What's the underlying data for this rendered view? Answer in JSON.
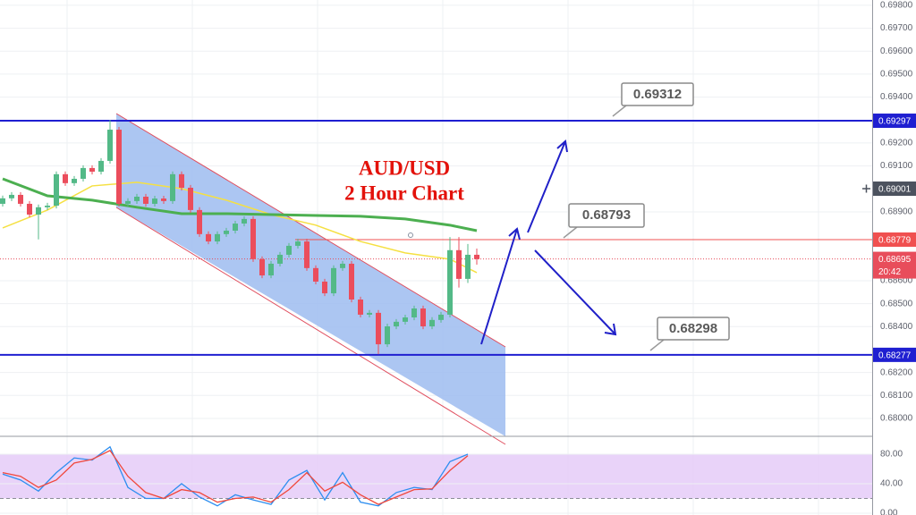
{
  "chart_data": [
    {
      "type": "candlestick",
      "title": "AUD/USD",
      "subtitle": "2 Hour Chart",
      "up_color": "#53b987",
      "down_color": "#eb4d5c",
      "open": [
        0.68935,
        0.68959,
        0.68974,
        0.68935,
        0.68888,
        0.6892,
        0.68927,
        0.69064,
        0.69025,
        0.69044,
        0.69091,
        0.69075,
        0.69122,
        0.69258,
        0.68935,
        0.68947,
        0.68966,
        0.68935,
        0.68958,
        0.68947,
        0.69064,
        0.69005,
        0.68908,
        0.68803,
        0.68771,
        0.68803,
        0.68818,
        0.68849,
        0.68869,
        0.68694,
        0.68623,
        0.68674,
        0.68713,
        0.68752,
        0.68771,
        0.68655,
        0.68596,
        0.68545,
        0.68655,
        0.68674,
        0.68518,
        0.68452,
        0.6846,
        0.68323,
        0.68401,
        0.68421,
        0.6844,
        0.68479,
        0.68401,
        0.68429,
        0.68452,
        0.68733,
        0.68608,
        0.68713
      ],
      "high": [
        0.68971,
        0.68986,
        0.68986,
        0.68947,
        0.68932,
        0.68939,
        0.69076,
        0.69076,
        0.69056,
        0.69103,
        0.69103,
        0.69134,
        0.693,
        0.6927,
        0.68959,
        0.68978,
        0.68978,
        0.6897,
        0.6897,
        0.69076,
        0.69076,
        0.69017,
        0.6892,
        0.68815,
        0.68815,
        0.6883,
        0.68861,
        0.68881,
        0.68881,
        0.68706,
        0.68686,
        0.68725,
        0.68764,
        0.68783,
        0.68783,
        0.68667,
        0.68608,
        0.68667,
        0.68686,
        0.68686,
        0.6853,
        0.68472,
        0.68472,
        0.68413,
        0.68433,
        0.68452,
        0.68491,
        0.68491,
        0.68441,
        0.68464,
        0.6879,
        0.6879,
        0.6876,
        0.6874
      ],
      "low": [
        0.68923,
        0.68947,
        0.68923,
        0.68876,
        0.6878,
        0.68908,
        0.68915,
        0.69013,
        0.69013,
        0.69032,
        0.69063,
        0.69063,
        0.6911,
        0.68923,
        0.68923,
        0.68935,
        0.68923,
        0.68923,
        0.68935,
        0.68935,
        0.68993,
        0.68896,
        0.68791,
        0.68759,
        0.68759,
        0.68791,
        0.68806,
        0.68837,
        0.68682,
        0.68611,
        0.68611,
        0.68662,
        0.68701,
        0.6874,
        0.68643,
        0.68584,
        0.68533,
        0.68533,
        0.68643,
        0.68506,
        0.6844,
        0.6844,
        0.6828,
        0.68311,
        0.68389,
        0.68409,
        0.68428,
        0.68389,
        0.68389,
        0.68417,
        0.6844,
        0.6857,
        0.6859,
        0.6867
      ],
      "close": [
        0.68959,
        0.68974,
        0.68935,
        0.68888,
        0.6892,
        0.68927,
        0.69064,
        0.69025,
        0.69044,
        0.69091,
        0.69075,
        0.69122,
        0.69258,
        0.68935,
        0.68947,
        0.68966,
        0.68935,
        0.68958,
        0.68947,
        0.69064,
        0.69005,
        0.68908,
        0.68803,
        0.68771,
        0.68803,
        0.68818,
        0.68849,
        0.68869,
        0.68694,
        0.68623,
        0.68674,
        0.68713,
        0.68752,
        0.68771,
        0.68655,
        0.68596,
        0.68545,
        0.68655,
        0.68674,
        0.68518,
        0.68452,
        0.6846,
        0.68323,
        0.68401,
        0.68421,
        0.6844,
        0.68479,
        0.68401,
        0.68429,
        0.68452,
        0.68733,
        0.68608,
        0.68713,
        0.68694
      ],
      "moving_averages": [
        {
          "color": "#f5e042",
          "x": [
            0,
            5,
            10,
            15,
            20,
            25,
            30,
            35,
            40,
            45,
            50,
            53
          ],
          "values": [
            0.6883,
            0.68908,
            0.69013,
            0.69029,
            0.69001,
            0.68951,
            0.68888,
            0.68842,
            0.68771,
            0.68721,
            0.68694,
            0.68635
          ]
        },
        {
          "color": "#4caf50",
          "x": [
            0,
            5,
            10,
            15,
            20,
            25,
            30,
            35,
            40,
            45,
            50,
            53
          ],
          "values": [
            0.69044,
            0.6897,
            0.68951,
            0.6892,
            0.68892,
            0.68892,
            0.68888,
            0.68884,
            0.68881,
            0.68869,
            0.68842,
            0.68818
          ]
        }
      ],
      "levels": [
        {
          "value": 0.69297,
          "color": "#1f1fd1"
        },
        {
          "value": 0.68779,
          "color": "#f05050"
        },
        {
          "value": 0.68277,
          "color": "#1f1fd1"
        }
      ],
      "price": {
        "value": 0.68695,
        "countdown": "20:42",
        "color": "#e84d5b"
      },
      "crosshair": {
        "value": 0.69001
      },
      "annotations": [
        "0.69312",
        "0.68793",
        "0.68298"
      ],
      "ylim": [
        0.67922,
        0.69823
      ],
      "yticks": [
        {
          "value": 0.698,
          "label": "0.69800"
        },
        {
          "value": 0.697,
          "label": "0.69700"
        },
        {
          "value": 0.696,
          "label": "0.69600"
        },
        {
          "value": 0.695,
          "label": "0.69500"
        },
        {
          "value": 0.694,
          "label": "0.69400"
        },
        {
          "value": 0.692,
          "label": "0.69200"
        },
        {
          "value": 0.691,
          "label": "0.69100"
        },
        {
          "value": 0.689,
          "label": "0.68900"
        },
        {
          "value": 0.686,
          "label": "0.68600"
        },
        {
          "value": 0.685,
          "label": "0.68500"
        },
        {
          "value": 0.684,
          "label": "0.68400"
        },
        {
          "value": 0.682,
          "label": "0.68200"
        },
        {
          "value": 0.681,
          "label": "0.68100"
        },
        {
          "value": 0.68,
          "label": "0.68000"
        }
      ],
      "grid": true
    },
    {
      "type": "line",
      "band": [
        20,
        80
      ],
      "band_color": "#e4c8f7",
      "series": [
        {
          "color": "#2d8ef0",
          "x": [
            0,
            2,
            4,
            6,
            8,
            10,
            12,
            14,
            16,
            18,
            20,
            22,
            24,
            26,
            28,
            30,
            32,
            34,
            36,
            38,
            40,
            42,
            44,
            46,
            48,
            50,
            52
          ],
          "values": [
            53,
            45,
            30,
            55,
            75,
            72,
            90,
            35,
            20,
            20,
            40,
            22,
            10,
            25,
            18,
            12,
            45,
            58,
            18,
            55,
            15,
            10,
            28,
            35,
            32,
            70,
            80
          ]
        },
        {
          "color": "#f0483c",
          "x": [
            0,
            2,
            4,
            6,
            8,
            10,
            12,
            14,
            16,
            18,
            20,
            22,
            24,
            26,
            28,
            30,
            32,
            34,
            36,
            38,
            40,
            42,
            44,
            46,
            48,
            50,
            52
          ],
          "values": [
            55,
            50,
            35,
            45,
            68,
            73,
            85,
            50,
            28,
            20,
            32,
            28,
            15,
            20,
            22,
            15,
            32,
            55,
            30,
            42,
            25,
            12,
            22,
            32,
            33,
            58,
            78
          ]
        }
      ],
      "ylim": [
        -2.4,
        101.8
      ],
      "yticks": [
        {
          "value": 80,
          "label": "80.00"
        },
        {
          "value": 40,
          "label": "40.00"
        },
        {
          "value": 0,
          "label": "0.00"
        }
      ]
    }
  ]
}
